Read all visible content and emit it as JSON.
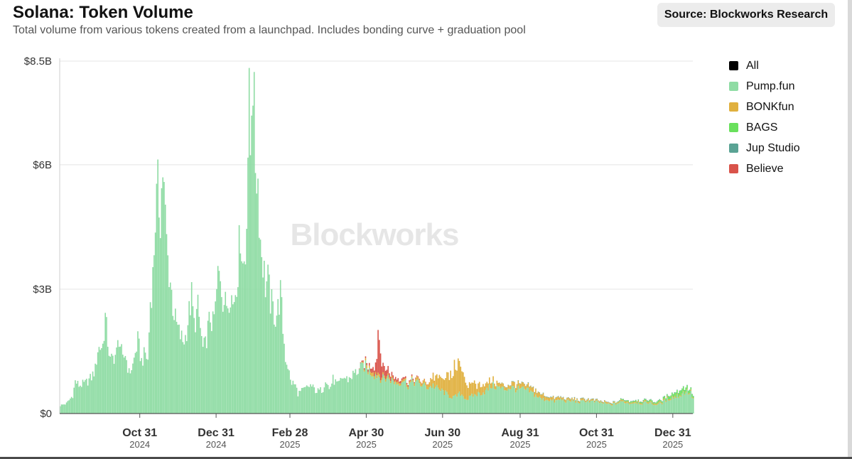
{
  "header": {
    "title": "Solana: Token Volume",
    "subtitle": "Total volume from various tokens created from a launchpad. Includes bonding curve + graduation pool",
    "source": "Source: Blockworks Research"
  },
  "watermark": "Blockworks",
  "colors": {
    "All": "#000000",
    "Pump.fun": "#8fdca4",
    "BONKfun": "#e0b03e",
    "BAGS": "#69e05c",
    "Jup Studio": "#5aa394",
    "Believe": "#d9534a",
    "gridline": "#e4e4e4",
    "axis": "#555555"
  },
  "chart_data": {
    "type": "bar",
    "stacked": true,
    "title": "Solana: Token Volume",
    "ylabel": "",
    "xlabel": "",
    "ylim": [
      0,
      8.5
    ],
    "y_unit": "$B",
    "y_ticks": [
      {
        "value": 0,
        "label": "$0"
      },
      {
        "value": 3,
        "label": "$3B"
      },
      {
        "value": 6,
        "label": "$6B"
      },
      {
        "value": 8.5,
        "label": "$8.5B"
      }
    ],
    "x_ticks": [
      {
        "day": 64,
        "label": "Oct 31",
        "year": "2024"
      },
      {
        "day": 125,
        "label": "Dec 31",
        "year": "2024"
      },
      {
        "day": 184,
        "label": "Feb 28",
        "year": "2025"
      },
      {
        "day": 245,
        "label": "Apr 30",
        "year": "2025"
      },
      {
        "day": 306,
        "label": "Jun 30",
        "year": "2025"
      },
      {
        "day": 368,
        "label": "Aug 31",
        "year": "2025"
      },
      {
        "day": 429,
        "label": "Oct 31",
        "year": "2025"
      },
      {
        "day": 490,
        "label": "Dec 31",
        "year": "2025"
      }
    ],
    "x_range_days": [
      0,
      506
    ],
    "legend": [
      "All",
      "Pump.fun",
      "BONKfun",
      "BAGS",
      "Jup Studio",
      "Believe"
    ],
    "legend_position": "right",
    "series": [
      {
        "name": "Pump.fun",
        "anchors": [
          [
            0,
            0.2
          ],
          [
            5,
            0.25
          ],
          [
            10,
            0.45
          ],
          [
            12,
            0.8
          ],
          [
            15,
            0.7
          ],
          [
            20,
            0.75
          ],
          [
            25,
            0.9
          ],
          [
            28,
            1.1
          ],
          [
            30,
            1.6
          ],
          [
            34,
            1.7
          ],
          [
            36,
            2.4
          ],
          [
            38,
            1.8
          ],
          [
            40,
            1.3
          ],
          [
            45,
            1.5
          ],
          [
            47,
            1.9
          ],
          [
            50,
            1.3
          ],
          [
            52,
            1.5
          ],
          [
            55,
            1.0
          ],
          [
            58,
            1.2
          ],
          [
            62,
            1.8
          ],
          [
            65,
            1.3
          ],
          [
            68,
            1.5
          ],
          [
            70,
            1.3
          ],
          [
            72,
            2.8
          ],
          [
            74,
            3.4
          ],
          [
            76,
            4.9
          ],
          [
            78,
            5.5
          ],
          [
            80,
            5.0
          ],
          [
            82,
            6.1
          ],
          [
            84,
            4.8
          ],
          [
            86,
            3.8
          ],
          [
            88,
            3.3
          ],
          [
            90,
            2.7
          ],
          [
            92,
            2.3
          ],
          [
            95,
            2.0
          ],
          [
            98,
            1.8
          ],
          [
            100,
            1.9
          ],
          [
            103,
            2.5
          ],
          [
            105,
            2.9
          ],
          [
            107,
            2.2
          ],
          [
            110,
            2.6
          ],
          [
            112,
            2.1
          ],
          [
            114,
            1.6
          ],
          [
            116,
            1.7
          ],
          [
            118,
            2.1
          ],
          [
            120,
            2.4
          ],
          [
            122,
            2.2
          ],
          [
            124,
            2.6
          ],
          [
            126,
            3.4
          ],
          [
            128,
            3.5
          ],
          [
            130,
            2.9
          ],
          [
            132,
            2.7
          ],
          [
            134,
            2.8
          ],
          [
            136,
            3.1
          ],
          [
            138,
            2.7
          ],
          [
            140,
            3.1
          ],
          [
            142,
            3.6
          ],
          [
            144,
            4.6
          ],
          [
            146,
            3.7
          ],
          [
            148,
            3.9
          ],
          [
            150,
            6.6
          ],
          [
            151,
            7.6
          ],
          [
            152,
            6.5
          ],
          [
            153,
            8.1
          ],
          [
            154,
            8.5
          ],
          [
            156,
            6.3
          ],
          [
            158,
            5.8
          ],
          [
            160,
            4.3
          ],
          [
            162,
            3.8
          ],
          [
            164,
            3.2
          ],
          [
            166,
            3.3
          ],
          [
            168,
            2.8
          ],
          [
            170,
            2.6
          ],
          [
            172,
            2.4
          ],
          [
            174,
            2.6
          ],
          [
            176,
            3.0
          ],
          [
            178,
            2.1
          ],
          [
            180,
            1.4
          ],
          [
            182,
            1.2
          ],
          [
            184,
            0.8
          ],
          [
            186,
            0.75
          ],
          [
            188,
            0.7
          ],
          [
            190,
            0.5
          ],
          [
            195,
            0.6
          ],
          [
            200,
            0.7
          ],
          [
            205,
            0.55
          ],
          [
            210,
            0.6
          ],
          [
            212,
            0.9
          ],
          [
            215,
            0.6
          ],
          [
            218,
            0.85
          ],
          [
            222,
            0.7
          ],
          [
            226,
            0.9
          ],
          [
            230,
            0.85
          ],
          [
            235,
            1.0
          ],
          [
            240,
            1.1
          ],
          [
            243,
            1.2
          ],
          [
            245,
            1.1
          ],
          [
            250,
            1.0
          ],
          [
            254,
            0.95
          ],
          [
            258,
            0.85
          ],
          [
            262,
            0.9
          ],
          [
            266,
            0.8
          ],
          [
            270,
            0.75
          ],
          [
            274,
            0.85
          ],
          [
            278,
            0.7
          ],
          [
            282,
            0.8
          ],
          [
            286,
            0.75
          ],
          [
            290,
            0.7
          ],
          [
            294,
            0.65
          ],
          [
            298,
            0.7
          ],
          [
            302,
            0.6
          ],
          [
            306,
            0.55
          ],
          [
            310,
            0.45
          ],
          [
            315,
            0.4
          ],
          [
            320,
            0.5
          ],
          [
            325,
            0.35
          ],
          [
            330,
            0.45
          ],
          [
            335,
            0.5
          ],
          [
            340,
            0.55
          ],
          [
            345,
            0.7
          ],
          [
            350,
            0.65
          ],
          [
            355,
            0.6
          ],
          [
            360,
            0.65
          ],
          [
            365,
            0.6
          ],
          [
            370,
            0.6
          ],
          [
            375,
            0.55
          ],
          [
            380,
            0.45
          ],
          [
            385,
            0.35
          ],
          [
            390,
            0.35
          ],
          [
            395,
            0.3
          ],
          [
            400,
            0.35
          ],
          [
            405,
            0.3
          ],
          [
            410,
            0.32
          ],
          [
            415,
            0.28
          ],
          [
            420,
            0.32
          ],
          [
            425,
            0.3
          ],
          [
            430,
            0.28
          ],
          [
            435,
            0.25
          ],
          [
            440,
            0.22
          ],
          [
            445,
            0.25
          ],
          [
            450,
            0.3
          ],
          [
            455,
            0.25
          ],
          [
            460,
            0.28
          ],
          [
            465,
            0.25
          ],
          [
            470,
            0.28
          ],
          [
            475,
            0.22
          ],
          [
            480,
            0.25
          ],
          [
            485,
            0.35
          ],
          [
            490,
            0.4
          ],
          [
            495,
            0.45
          ],
          [
            500,
            0.55
          ],
          [
            504,
            0.5
          ],
          [
            506,
            0.35
          ]
        ]
      },
      {
        "name": "BONKfun",
        "anchors": [
          [
            0,
            0
          ],
          [
            240,
            0
          ],
          [
            243,
            0.05
          ],
          [
            248,
            0.08
          ],
          [
            255,
            0.06
          ],
          [
            260,
            0.05
          ],
          [
            270,
            0.05
          ],
          [
            280,
            0.05
          ],
          [
            290,
            0.08
          ],
          [
            296,
            0.15
          ],
          [
            300,
            0.25
          ],
          [
            303,
            0.3
          ],
          [
            306,
            0.35
          ],
          [
            310,
            0.45
          ],
          [
            314,
            0.6
          ],
          [
            317,
            0.8
          ],
          [
            319,
            0.7
          ],
          [
            322,
            0.5
          ],
          [
            326,
            0.35
          ],
          [
            330,
            0.3
          ],
          [
            335,
            0.2
          ],
          [
            340,
            0.15
          ],
          [
            345,
            0.12
          ],
          [
            350,
            0.1
          ],
          [
            355,
            0.08
          ],
          [
            360,
            0.1
          ],
          [
            365,
            0.12
          ],
          [
            370,
            0.1
          ],
          [
            375,
            0.1
          ],
          [
            380,
            0.12
          ],
          [
            385,
            0.1
          ],
          [
            390,
            0.08
          ],
          [
            400,
            0.05
          ],
          [
            420,
            0.04
          ],
          [
            440,
            0.03
          ],
          [
            470,
            0.03
          ],
          [
            506,
            0.02
          ]
        ]
      },
      {
        "name": "BAGS",
        "anchors": [
          [
            0,
            0
          ],
          [
            440,
            0
          ],
          [
            450,
            0.02
          ],
          [
            470,
            0.03
          ],
          [
            480,
            0.04
          ],
          [
            485,
            0.05
          ],
          [
            490,
            0.08
          ],
          [
            495,
            0.1
          ],
          [
            500,
            0.08
          ],
          [
            506,
            0.05
          ]
        ]
      },
      {
        "name": "Jup Studio",
        "anchors": [
          [
            0,
            0
          ],
          [
            350,
            0
          ],
          [
            360,
            0.01
          ],
          [
            400,
            0.01
          ],
          [
            450,
            0.01
          ],
          [
            506,
            0.01
          ]
        ]
      },
      {
        "name": "Believe",
        "anchors": [
          [
            0,
            0
          ],
          [
            238,
            0
          ],
          [
            240,
            0.02
          ],
          [
            246,
            0.05
          ],
          [
            250,
            0.1
          ],
          [
            252,
            0.2
          ],
          [
            253,
            0.35
          ],
          [
            254,
            0.9
          ],
          [
            255,
            1.1
          ],
          [
            256,
            0.6
          ],
          [
            257,
            0.3
          ],
          [
            259,
            0.2
          ],
          [
            262,
            0.15
          ],
          [
            265,
            0.1
          ],
          [
            270,
            0.06
          ],
          [
            275,
            0.04
          ],
          [
            280,
            0.03
          ],
          [
            290,
            0.01
          ],
          [
            300,
            0
          ],
          [
            506,
            0
          ]
        ]
      }
    ]
  }
}
